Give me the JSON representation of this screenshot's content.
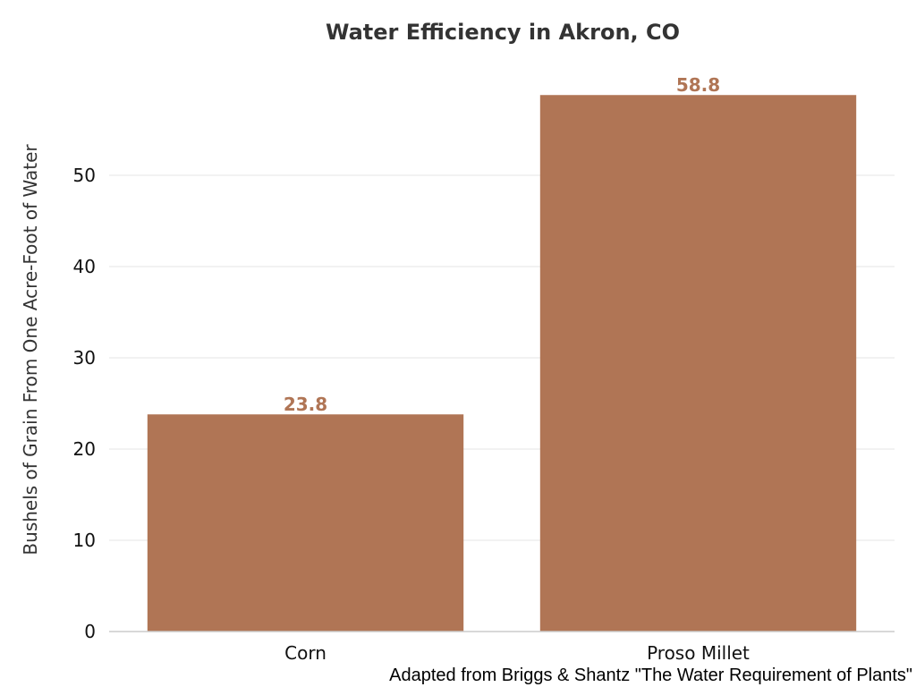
{
  "chart_data": {
    "type": "bar",
    "title": "Water Efficiency in Akron, CO",
    "xlabel": "",
    "ylabel": "Bushels of Grain From One Acre-Foot of Water",
    "categories": [
      "Corn",
      "Proso Millet"
    ],
    "values": [
      23.8,
      58.8
    ],
    "value_labels": [
      "23.8",
      "58.8"
    ],
    "ylim": [
      0,
      60
    ],
    "yticks": [
      0,
      10,
      20,
      30,
      40,
      50
    ],
    "grid": true,
    "bar_color": "#b07555",
    "label_color": "#b07555"
  },
  "source_note": "Adapted from Briggs & Shantz \"The Water Requirement of Plants\""
}
